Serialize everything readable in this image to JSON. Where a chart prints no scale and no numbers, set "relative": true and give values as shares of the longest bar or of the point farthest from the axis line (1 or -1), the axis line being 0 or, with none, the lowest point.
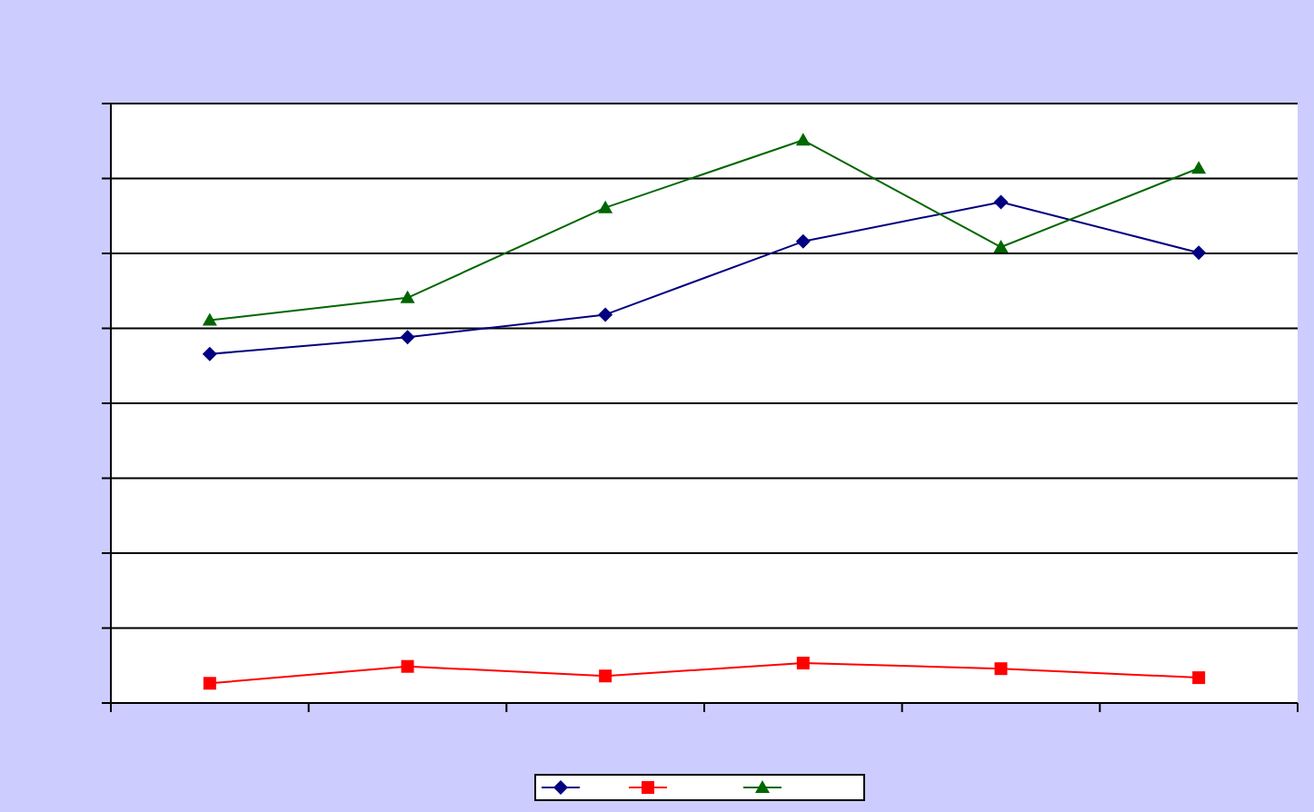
{
  "chart_data": {
    "type": "line",
    "relative": true,
    "categories": [
      null,
      null,
      null,
      null,
      null,
      null
    ],
    "series": [
      {
        "color": "#000080",
        "marker": "diamond",
        "values": [
          0.62,
          0.65,
          0.69,
          0.82,
          0.89,
          0.8
        ]
      },
      {
        "color": "#ff0000",
        "marker": "square",
        "values": [
          0.035,
          0.065,
          0.048,
          0.071,
          0.061,
          0.045
        ]
      },
      {
        "color": "#006600",
        "marker": "triangle",
        "values": [
          0.68,
          0.72,
          0.88,
          1,
          0.81,
          0.95
        ]
      }
    ],
    "grid": "y",
    "line_style": "solid"
  }
}
